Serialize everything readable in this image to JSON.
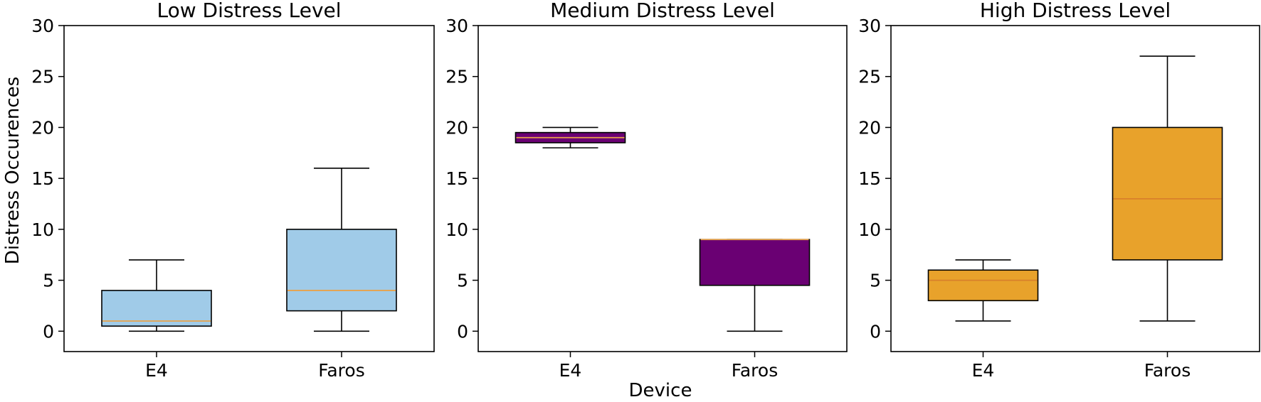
{
  "figure": {
    "ylabel": "Distress  Occurences",
    "xlabel": "Device"
  },
  "chart_data": [
    {
      "type": "box",
      "title": "Low  Distress  Level",
      "categories": [
        "E4",
        "Faros"
      ],
      "ylim": [
        -2,
        30
      ],
      "yticks": [
        0,
        5,
        10,
        15,
        20,
        25,
        30
      ],
      "box_color": "#a0cbe8",
      "median_color": "#e8a24a",
      "boxes": [
        {
          "category": "E4",
          "whisker_low": 0,
          "q1": 0.5,
          "median": 1,
          "q3": 4,
          "whisker_high": 7
        },
        {
          "category": "Faros",
          "whisker_low": 0,
          "q1": 2,
          "median": 4,
          "q3": 10,
          "whisker_high": 16
        }
      ],
      "grid": false
    },
    {
      "type": "box",
      "title": "Medium  Distress  Level",
      "categories": [
        "E4",
        "Faros"
      ],
      "ylim": [
        -2,
        30
      ],
      "yticks": [
        0,
        5,
        10,
        15,
        20,
        25,
        30
      ],
      "box_color": "#6a0073",
      "median_color": "#e8a24a",
      "boxes": [
        {
          "category": "E4",
          "whisker_low": 18,
          "q1": 18.5,
          "median": 19,
          "q3": 19.5,
          "whisker_high": 20
        },
        {
          "category": "Faros",
          "whisker_low": 0,
          "q1": 4.5,
          "median": 9,
          "q3": 9,
          "whisker_high": 9
        }
      ],
      "grid": false
    },
    {
      "type": "box",
      "title": "High  Distress  Level",
      "categories": [
        "E4",
        "Faros"
      ],
      "ylim": [
        -2,
        30
      ],
      "yticks": [
        0,
        5,
        10,
        15,
        20,
        25,
        30
      ],
      "box_color": "#e8a22b",
      "median_color": "#d9802b",
      "boxes": [
        {
          "category": "E4",
          "whisker_low": 1,
          "q1": 3,
          "median": 5,
          "q3": 6,
          "whisker_high": 7
        },
        {
          "category": "Faros",
          "whisker_low": 1,
          "q1": 7,
          "median": 13,
          "q3": 20,
          "whisker_high": 27
        }
      ],
      "grid": false
    }
  ]
}
